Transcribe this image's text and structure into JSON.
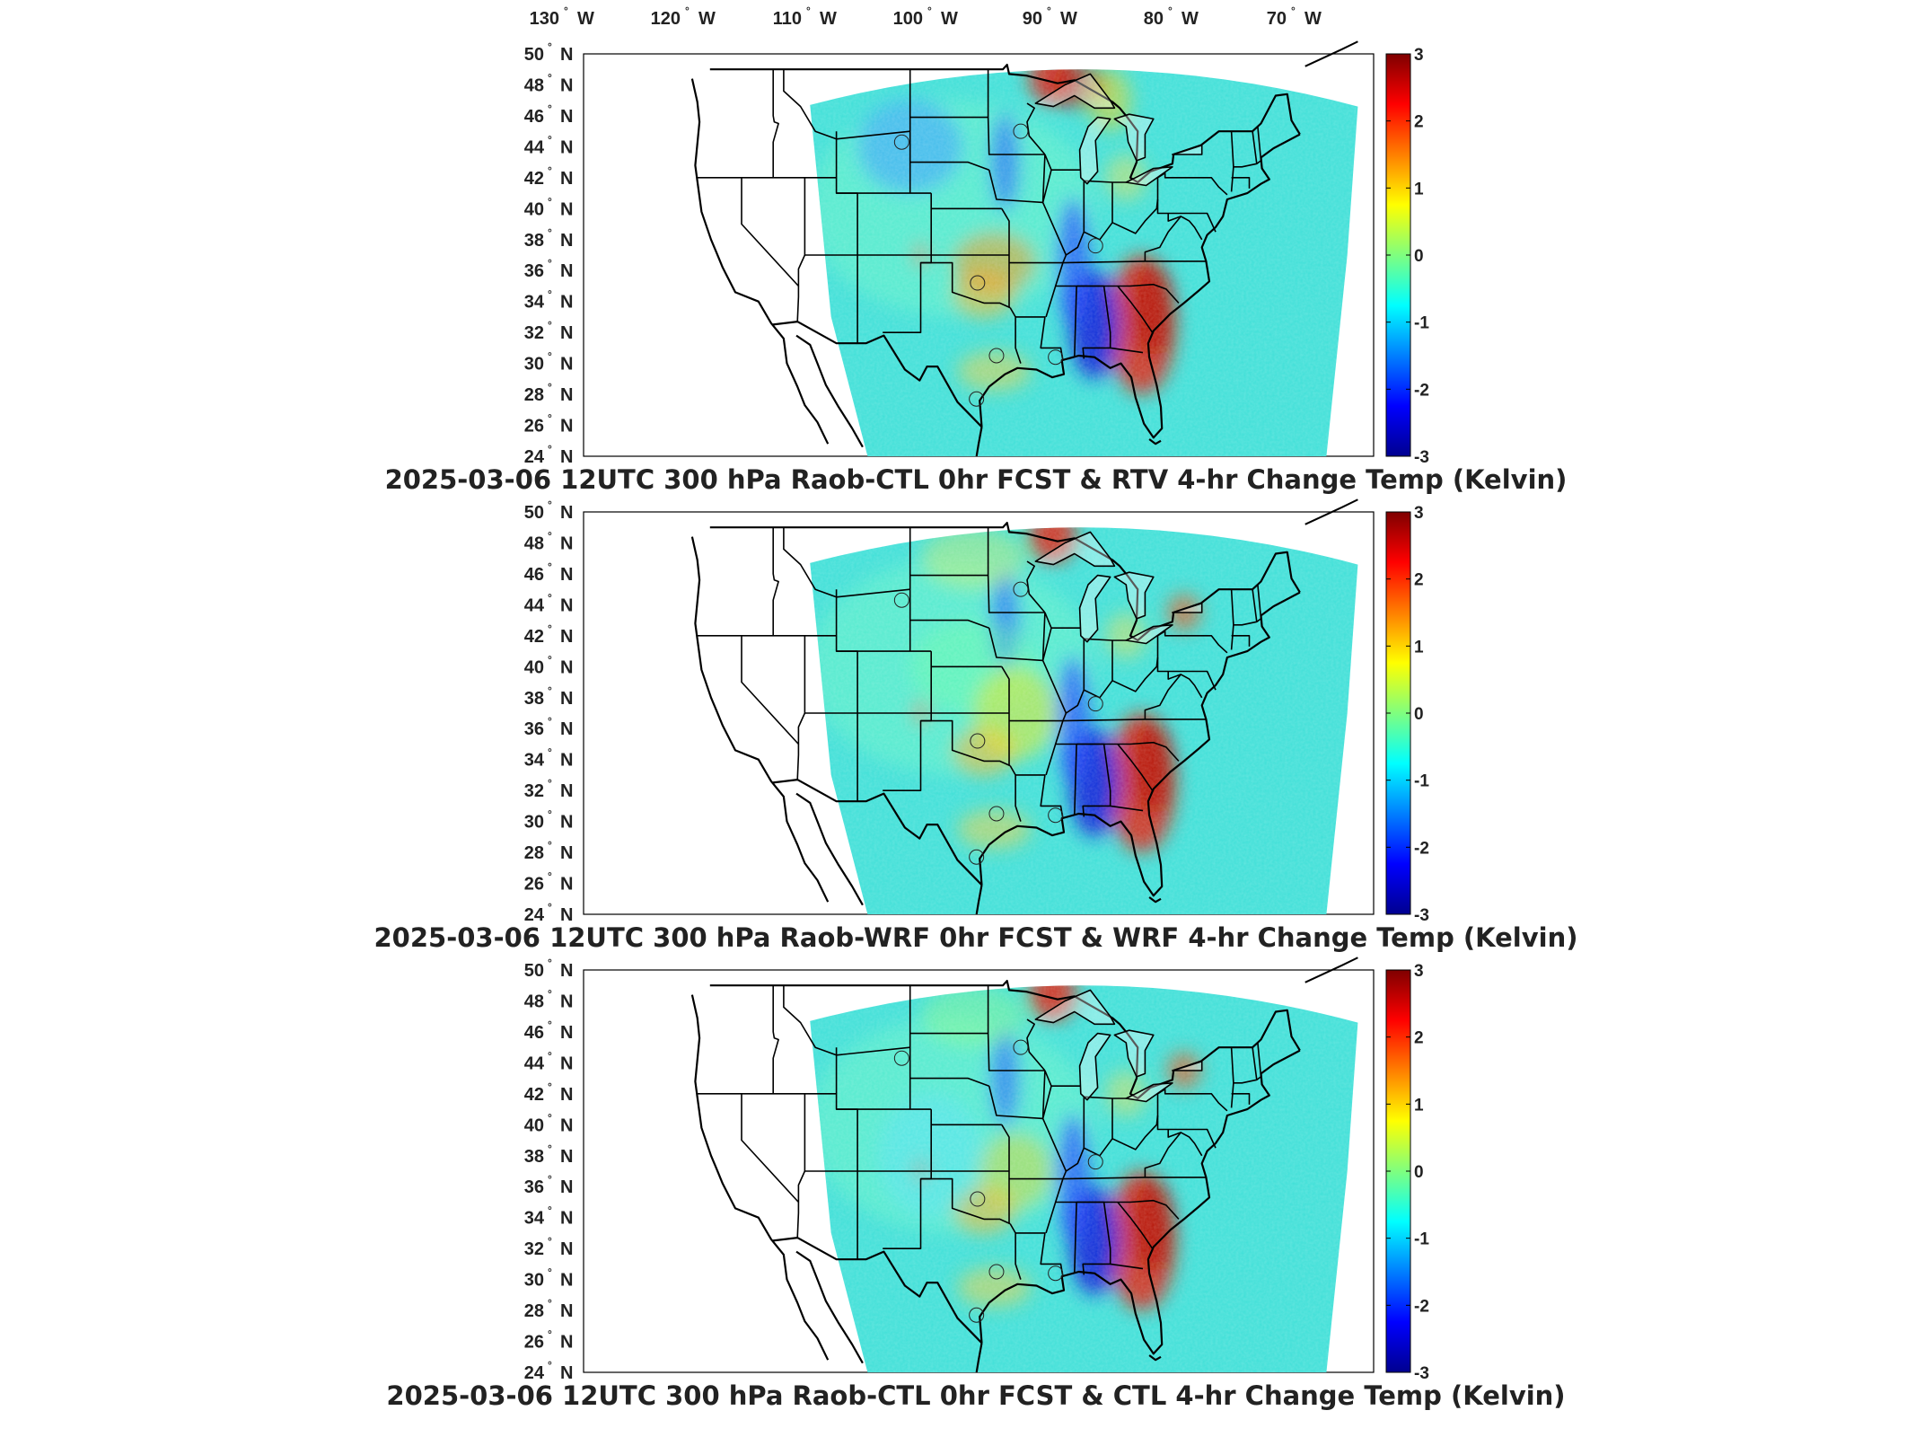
{
  "top_lon_labels": [
    {
      "deg": "130",
      "hem": "W"
    },
    {
      "deg": "120",
      "hem": "W"
    },
    {
      "deg": "110",
      "hem": "W"
    },
    {
      "deg": "100",
      "hem": "W"
    },
    {
      "deg": "90",
      "hem": "W"
    },
    {
      "deg": "80",
      "hem": "W"
    },
    {
      "deg": "70",
      "hem": "W"
    }
  ],
  "lat_labels": [
    {
      "deg": "50",
      "hem": "N"
    },
    {
      "deg": "48",
      "hem": "N"
    },
    {
      "deg": "46",
      "hem": "N"
    },
    {
      "deg": "44",
      "hem": "N"
    },
    {
      "deg": "42",
      "hem": "N"
    },
    {
      "deg": "40",
      "hem": "N"
    },
    {
      "deg": "38",
      "hem": "N"
    },
    {
      "deg": "36",
      "hem": "N"
    },
    {
      "deg": "34",
      "hem": "N"
    },
    {
      "deg": "32",
      "hem": "N"
    },
    {
      "deg": "30",
      "hem": "N"
    },
    {
      "deg": "28",
      "hem": "N"
    },
    {
      "deg": "26",
      "hem": "N"
    },
    {
      "deg": "24",
      "hem": "N"
    }
  ],
  "colorbar": {
    "ticks": [
      "3",
      "2",
      "1",
      "0",
      "-1",
      "-2",
      "-3"
    ],
    "min": -3,
    "max": 3,
    "colors": [
      "#00008f",
      "#0000ff",
      "#007fff",
      "#00ffff",
      "#7fff7f",
      "#ffff00",
      "#ff7f00",
      "#ff0000",
      "#7f0000"
    ]
  },
  "panels": [
    {
      "title": "2025-03-06 12UTC 300 hPa Raob-CTL 0hr FCST & RTV 4-hr Change Temp (Kelvin)"
    },
    {
      "title": "2025-03-06 12UTC 300 hPa Raob-WRF 0hr FCST & WRF 4-hr Change Temp (Kelvin)"
    },
    {
      "title": "2025-03-06 12UTC 300 hPa Raob-CTL 0hr FCST & CTL 4-hr Change Temp (Kelvin)"
    }
  ],
  "colors": {
    "land_fill": "#ffffff",
    "outline": "#000000",
    "cold_core": "#0a1fd0",
    "warm_core": "#d01010",
    "domain_base": "#3fe0d8"
  }
}
